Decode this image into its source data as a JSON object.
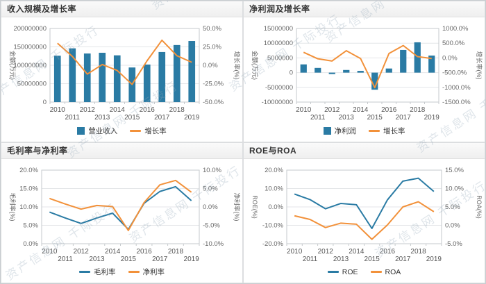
{
  "watermark": {
    "text": "资产信息网 千际投行"
  },
  "colors": {
    "bar_blue": "#2a7ba4",
    "line_orange": "#f2913a",
    "grid": "#e4e6e8",
    "axis": "#c6cacd",
    "tick_text": "#666666",
    "xlabel_text": "#555555",
    "title_text": "#333333"
  },
  "chart_data": [
    {
      "id": "revenue-growth",
      "type": "bar-line",
      "title": "收入规模及增长率",
      "categories": [
        "2010",
        "2011",
        "2012",
        "2013",
        "2014",
        "2015",
        "2016",
        "2017",
        "2018",
        "2019"
      ],
      "left_axis": {
        "label": "金额(万元)",
        "min": 0,
        "max": 200000000,
        "tick_values": [
          200000000,
          150000000,
          100000000,
          50000000,
          0
        ],
        "tick_labels": [
          "200000000",
          "150000000",
          "100000000",
          "50000000",
          "0"
        ]
      },
      "right_axis": {
        "label": "增长率(%)",
        "min": -50,
        "max": 50,
        "tick_values": [
          50,
          25,
          0,
          -25,
          -50
        ],
        "tick_labels": [
          "50.0%",
          "25.0%",
          "0.0%",
          "-25.0%",
          "-50.0%"
        ]
      },
      "series": [
        {
          "name": "营业收入",
          "type": "bar",
          "axis": "left",
          "color": "#2a7ba4",
          "values": [
            126000000,
            146000000,
            132000000,
            134000000,
            127000000,
            94000000,
            102000000,
            136000000,
            155000000,
            166000000
          ]
        },
        {
          "name": "增长率",
          "type": "line",
          "axis": "right",
          "color": "#f2913a",
          "values": [
            30,
            12,
            -12,
            1,
            -7,
            -26,
            6,
            34,
            13,
            4
          ]
        }
      ],
      "layout": {
        "margin_left": 70,
        "margin_right": 62,
        "legend_position": "bottom",
        "grid": true
      }
    },
    {
      "id": "netprofit-growth",
      "type": "bar-line",
      "title": "净利润及增长率",
      "categories": [
        "2010",
        "2011",
        "2012",
        "2013",
        "2014",
        "2015",
        "2016",
        "2017",
        "2018",
        "2019"
      ],
      "left_axis": {
        "label": "金额(万元)",
        "min": -10000000,
        "max": 15000000,
        "tick_values": [
          15000000,
          10000000,
          5000000,
          0,
          -5000000,
          -10000000
        ],
        "tick_labels": [
          "15000000",
          "10000000",
          "5000000",
          "0",
          "-5000000",
          "-10000000"
        ]
      },
      "right_axis": {
        "label": "增长率(%)",
        "min": -1500,
        "max": 1000,
        "tick_values": [
          1000,
          500,
          0,
          -500,
          -1000,
          -1500
        ],
        "tick_labels": [
          "1000.0%",
          "500.0%",
          "0.0%",
          "-500.0%",
          "-1000.0%",
          "-1500.0%"
        ]
      },
      "series": [
        {
          "name": "净利润",
          "type": "bar",
          "axis": "left",
          "color": "#2a7ba4",
          "values": [
            2800000,
            1600000,
            -500000,
            900000,
            600000,
            -5800000,
            1400000,
            7700000,
            10300000,
            5800000
          ]
        },
        {
          "name": "增长率",
          "type": "line",
          "axis": "right",
          "color": "#f2913a",
          "values": [
            190,
            -30,
            -105,
            245,
            -20,
            -1010,
            150,
            420,
            45,
            -20
          ]
        }
      ],
      "layout": {
        "margin_left": 76,
        "margin_right": 66,
        "legend_position": "bottom",
        "grid": true
      }
    },
    {
      "id": "margins",
      "type": "line",
      "title": "毛利率与净利率",
      "categories": [
        "2010",
        "2011",
        "2012",
        "2013",
        "2014",
        "2015",
        "2016",
        "2017",
        "2018",
        "2019"
      ],
      "left_axis": {
        "label": "毛利率(%)",
        "min": 0,
        "max": 20,
        "tick_values": [
          20,
          15,
          10,
          5,
          0
        ],
        "tick_labels": [
          "20.0%",
          "15.0%",
          "10.0%",
          "5.0%",
          "0.0%"
        ]
      },
      "right_axis": {
        "label": "净利率(%)",
        "min": -10,
        "max": 10,
        "tick_values": [
          10,
          5,
          0,
          -5,
          -10
        ],
        "tick_labels": [
          "10.0%",
          "5.0%",
          "0.0%",
          "-5.0%",
          "-10.0%"
        ]
      },
      "series": [
        {
          "name": "毛利率",
          "type": "line",
          "axis": "left",
          "color": "#2a7ba4",
          "values": [
            8.6,
            7.0,
            5.5,
            7.0,
            8.3,
            3.9,
            11.0,
            14.2,
            15.5,
            11.7
          ]
        },
        {
          "name": "净利率",
          "type": "line",
          "axis": "right",
          "color": "#f2913a",
          "values": [
            2.3,
            0.8,
            -0.6,
            0.4,
            0.1,
            -6.4,
            1.2,
            6.0,
            7.2,
            4.0
          ]
        }
      ],
      "layout": {
        "margin_left": 58,
        "margin_right": 62,
        "legend_position": "bottom",
        "grid": true
      }
    },
    {
      "id": "roe-roa",
      "type": "line",
      "title": "ROE与ROA",
      "categories": [
        "2010",
        "2011",
        "2012",
        "2013",
        "2014",
        "2015",
        "2016",
        "2017",
        "2018",
        "2019"
      ],
      "left_axis": {
        "label": "ROE(%)",
        "min": -20,
        "max": 20,
        "tick_values": [
          20,
          10,
          0,
          -10,
          -20
        ],
        "tick_labels": [
          "20.0%",
          "10.0%",
          "0.0%",
          "-10.0%",
          "-20.0%"
        ]
      },
      "right_axis": {
        "label": "ROA(%)",
        "min": -5,
        "max": 15,
        "tick_values": [
          15,
          10,
          5,
          0,
          -5
        ],
        "tick_labels": [
          "15.0%",
          "10.0%",
          "5.0%",
          "0.0%",
          "-5.0%"
        ]
      },
      "series": [
        {
          "name": "ROE",
          "type": "line",
          "axis": "left",
          "color": "#2a7ba4",
          "values": [
            7.0,
            4.0,
            -1.0,
            1.9,
            1.2,
            -11.7,
            3.8,
            14.0,
            15.6,
            8.4
          ]
        },
        {
          "name": "ROA",
          "type": "line",
          "axis": "right",
          "color": "#f2913a",
          "values": [
            2.6,
            1.6,
            -0.6,
            0.6,
            0.3,
            -3.8,
            0.1,
            5.0,
            6.4,
            3.7
          ]
        }
      ],
      "layout": {
        "margin_left": 62,
        "margin_right": 62,
        "legend_position": "bottom",
        "grid": true
      }
    }
  ]
}
